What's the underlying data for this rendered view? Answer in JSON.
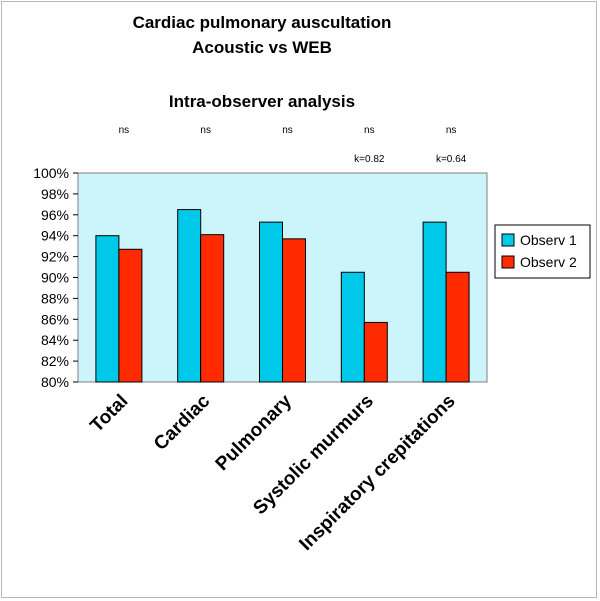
{
  "chart_data": {
    "type": "bar",
    "title_line1": "Cardiac pulmonary auscultation",
    "title_line2": "Acoustic vs WEB",
    "subtitle": "Intra-observer analysis",
    "categories": [
      "Total",
      "Cardiac",
      "Pulmonary",
      "Systolic murmurs",
      "Inspiratory crepitations"
    ],
    "series": [
      {
        "name": "Observ 1",
        "color": "#00c8e8",
        "values": [
          94.0,
          96.5,
          95.3,
          90.5,
          95.3
        ]
      },
      {
        "name": "Observ 2",
        "color": "#ff2a00",
        "values": [
          92.7,
          94.1,
          93.7,
          85.7,
          90.5
        ]
      }
    ],
    "significance": [
      "ns",
      "ns",
      "ns",
      "ns",
      "ns"
    ],
    "kappa": [
      "",
      "",
      "",
      "k=0.82",
      "k=0.64"
    ],
    "ylim": [
      80,
      100
    ],
    "yticks": [
      "80%",
      "82%",
      "84%",
      "86%",
      "88%",
      "90%",
      "92%",
      "94%",
      "96%",
      "98%",
      "100%"
    ],
    "grid": false,
    "legend_position": "right",
    "plot_background": "#ccf5fb"
  }
}
